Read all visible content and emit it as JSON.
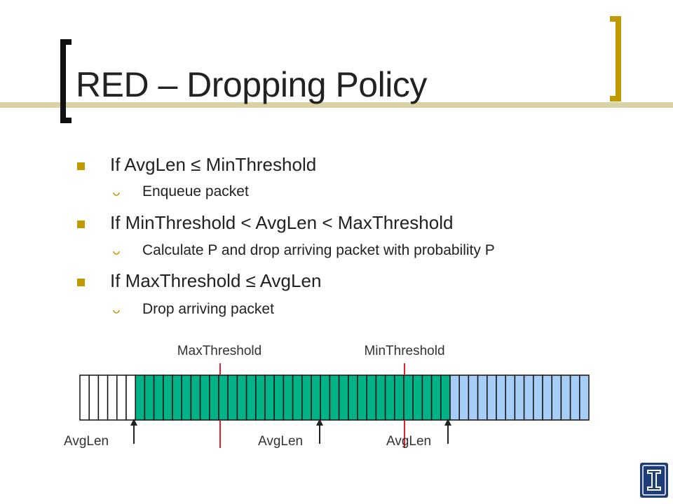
{
  "slide": {
    "title": "RED – Dropping Policy",
    "bullets": [
      {
        "text": "If AvgLen ≤ MinThreshold",
        "sub": "Enqueue packet"
      },
      {
        "text": "If MinThreshold < AvgLen < MaxThreshold",
        "sub": "Calculate P and drop arriving packet with probability P"
      },
      {
        "text": "If MaxThreshold ≤ AvgLen",
        "sub": "Drop arriving packet"
      }
    ]
  },
  "diagram": {
    "threshold_labels": {
      "max": "MaxThreshold",
      "min": "MinThreshold"
    },
    "avglen_labels": [
      "AvgLen",
      "AvgLen",
      "AvgLen"
    ],
    "queue": {
      "empty_cells": 6,
      "green_cells": 34,
      "blue_cells": 15,
      "colors": {
        "empty": "#ffffff",
        "green": "#00b386",
        "blue": "#a6cdf5",
        "threshold": "#e0202a"
      }
    }
  },
  "branding": {
    "accent": "#c09a00",
    "logo_color": "#1e3c78",
    "logo_letter": "I"
  }
}
